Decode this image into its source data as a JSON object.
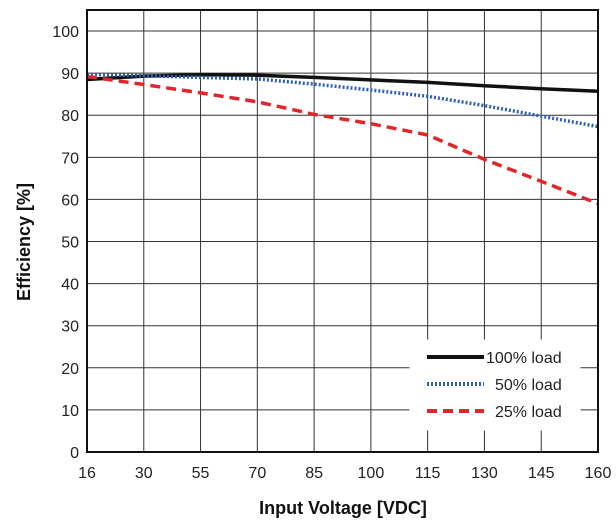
{
  "chart_data": {
    "type": "line",
    "title": "",
    "xlabel": "Input Voltage [VDC]",
    "ylabel": "Efficiency [%]",
    "x_tick_labels": [
      "16",
      "30",
      "55",
      "70",
      "85",
      "100",
      "115",
      "130",
      "145",
      "160"
    ],
    "x": [
      16,
      30,
      55,
      70,
      85,
      100,
      115,
      130,
      145,
      160
    ],
    "ylim": [
      0,
      105
    ],
    "y_ticks": [
      0,
      10,
      20,
      30,
      40,
      50,
      60,
      70,
      80,
      90,
      100
    ],
    "grid": true,
    "legend_position": "bottom-right",
    "series": [
      {
        "name": "100% load",
        "color": "#111111",
        "style": "solid",
        "values": [
          88.5,
          89.3,
          89.6,
          89.5,
          89.0,
          88.4,
          87.8,
          87.0,
          86.3,
          85.7
        ]
      },
      {
        "name": "50% load",
        "color": "#2f5fb3",
        "style": "dotted",
        "values": [
          89.7,
          89.4,
          89.0,
          88.6,
          87.4,
          86.0,
          84.5,
          82.3,
          79.8,
          77.3
        ]
      },
      {
        "name": "25% load",
        "color": "#e0262b",
        "style": "dashed",
        "values": [
          89.2,
          87.3,
          85.3,
          83.2,
          80.2,
          78.0,
          75.3,
          69.5,
          64.3,
          59.0
        ]
      }
    ]
  }
}
